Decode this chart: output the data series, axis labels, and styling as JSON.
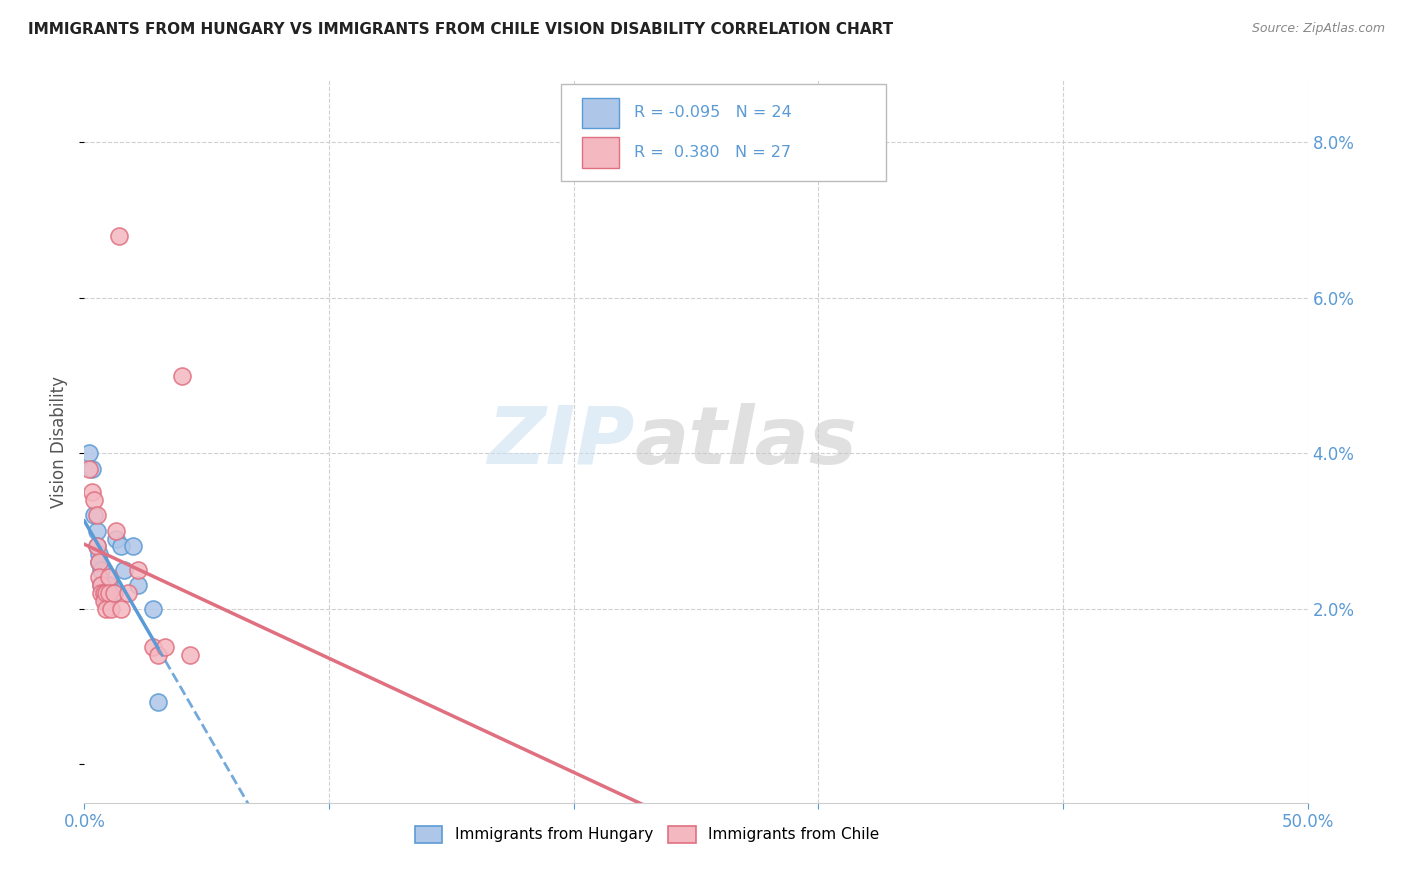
{
  "title": "IMMIGRANTS FROM HUNGARY VS IMMIGRANTS FROM CHILE VISION DISABILITY CORRELATION CHART",
  "source": "Source: ZipAtlas.com",
  "ylabel": "Vision Disability",
  "xlim": [
    0.0,
    0.5
  ],
  "ylim": [
    -0.005,
    0.088
  ],
  "xtick_vals": [
    0.0,
    0.1,
    0.2,
    0.3,
    0.4,
    0.5
  ],
  "xtick_labels": [
    "0.0%",
    "",
    "",
    "",
    "",
    "50.0%"
  ],
  "ytick_vals": [
    0.0,
    0.02,
    0.04,
    0.06,
    0.08
  ],
  "ytick_labels_right": [
    "",
    "2.0%",
    "4.0%",
    "6.0%",
    "8.0%"
  ],
  "hungary_color": "#aec6e8",
  "hungary_edge_color": "#5b9bd5",
  "chile_color": "#f4b8c1",
  "chile_edge_color": "#e07080",
  "hungary_scatter": [
    [
      0.002,
      0.04
    ],
    [
      0.003,
      0.038
    ],
    [
      0.004,
      0.032
    ],
    [
      0.005,
      0.03
    ],
    [
      0.005,
      0.028
    ],
    [
      0.006,
      0.027
    ],
    [
      0.006,
      0.026
    ],
    [
      0.007,
      0.025
    ],
    [
      0.007,
      0.023
    ],
    [
      0.008,
      0.022
    ],
    [
      0.008,
      0.022
    ],
    [
      0.009,
      0.022
    ],
    [
      0.009,
      0.021
    ],
    [
      0.01,
      0.023
    ],
    [
      0.01,
      0.022
    ],
    [
      0.011,
      0.022
    ],
    [
      0.012,
      0.022
    ],
    [
      0.013,
      0.029
    ],
    [
      0.015,
      0.028
    ],
    [
      0.016,
      0.025
    ],
    [
      0.02,
      0.028
    ],
    [
      0.022,
      0.023
    ],
    [
      0.028,
      0.02
    ],
    [
      0.03,
      0.008
    ]
  ],
  "chile_scatter": [
    [
      0.002,
      0.038
    ],
    [
      0.003,
      0.035
    ],
    [
      0.004,
      0.034
    ],
    [
      0.005,
      0.032
    ],
    [
      0.005,
      0.028
    ],
    [
      0.006,
      0.026
    ],
    [
      0.006,
      0.024
    ],
    [
      0.007,
      0.023
    ],
    [
      0.007,
      0.022
    ],
    [
      0.008,
      0.022
    ],
    [
      0.008,
      0.021
    ],
    [
      0.009,
      0.022
    ],
    [
      0.009,
      0.02
    ],
    [
      0.01,
      0.024
    ],
    [
      0.01,
      0.022
    ],
    [
      0.011,
      0.02
    ],
    [
      0.012,
      0.022
    ],
    [
      0.013,
      0.03
    ],
    [
      0.014,
      0.068
    ],
    [
      0.015,
      0.02
    ],
    [
      0.018,
      0.022
    ],
    [
      0.022,
      0.025
    ],
    [
      0.028,
      0.015
    ],
    [
      0.03,
      0.014
    ],
    [
      0.033,
      0.015
    ],
    [
      0.04,
      0.05
    ],
    [
      0.043,
      0.014
    ]
  ],
  "watermark_zip": "ZIP",
  "watermark_atlas": "atlas",
  "background_color": "#ffffff",
  "grid_color": "#d0d0d0",
  "title_color": "#222222",
  "axis_color": "#5b9bd5",
  "ylabel_color": "#555555",
  "source_color": "#888888"
}
